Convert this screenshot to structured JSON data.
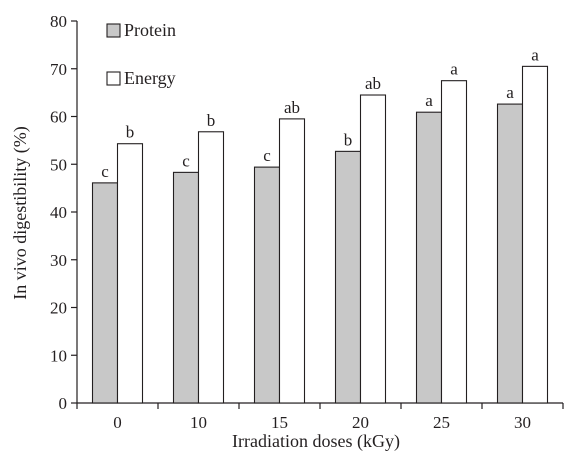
{
  "chart_data": {
    "type": "bar",
    "xlabel": "Irradiation doses (kGy)",
    "ylabel": "In vivo digestibility (%)",
    "ylim": [
      0,
      80
    ],
    "yticks": [
      0,
      10,
      20,
      30,
      40,
      50,
      60,
      70,
      80
    ],
    "categories": [
      "0",
      "10",
      "15",
      "20",
      "25",
      "30"
    ],
    "legend_position": "top-left",
    "grid": false,
    "series": [
      {
        "name": "Protein",
        "color": "#c8c8c8",
        "values": [
          46.1,
          48.3,
          49.4,
          52.7,
          60.9,
          62.6
        ],
        "labels": [
          "c",
          "c",
          "c",
          "b",
          "a",
          "a"
        ]
      },
      {
        "name": "Energy",
        "color": "#ffffff",
        "values": [
          54.3,
          56.8,
          59.5,
          64.5,
          67.5,
          70.5
        ],
        "labels": [
          "b",
          "b",
          "ab",
          "ab",
          "a",
          "a"
        ]
      }
    ]
  }
}
